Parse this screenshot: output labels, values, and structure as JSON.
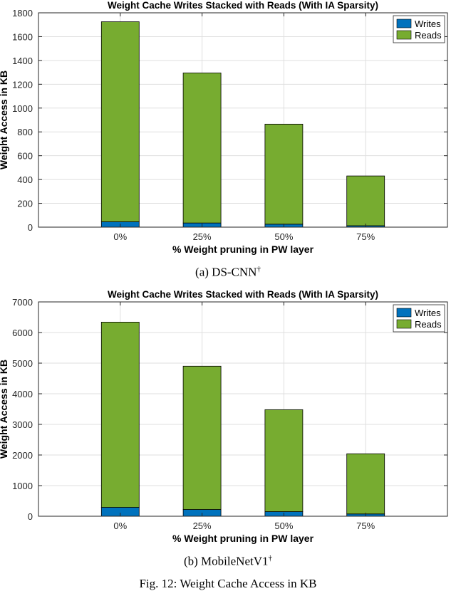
{
  "charts": [
    {
      "type": "bar",
      "stacked": true,
      "title": "Weight Cache Writes Stacked with Reads (With IA Sparsity)",
      "xlabel": "% Weight pruning in PW layer",
      "ylabel": "Weight Access in KB",
      "categories": [
        "0%",
        "25%",
        "50%",
        "75%"
      ],
      "ylim": [
        0,
        1800
      ],
      "yticks": [
        0,
        200,
        400,
        600,
        800,
        1000,
        1200,
        1400,
        1600,
        1800
      ],
      "legend_position": "top-right",
      "series": [
        {
          "name": "Writes",
          "color": "#0072BD",
          "values": [
            45,
            35,
            25,
            12
          ]
        },
        {
          "name": "Reads",
          "color": "#77AC30",
          "values": [
            1680,
            1260,
            840,
            418
          ]
        }
      ]
    },
    {
      "type": "bar",
      "stacked": true,
      "title": "Weight Cache Writes Stacked with Reads (With IA Sparsity)",
      "xlabel": "% Weight pruning in PW layer",
      "ylabel": "Weight Access in KB",
      "categories": [
        "0%",
        "25%",
        "50%",
        "75%"
      ],
      "ylim": [
        0,
        7000
      ],
      "yticks": [
        0,
        1000,
        2000,
        3000,
        4000,
        5000,
        6000,
        7000
      ],
      "legend_position": "top-right",
      "series": [
        {
          "name": "Writes",
          "color": "#0072BD",
          "values": [
            290,
            220,
            150,
            75
          ]
        },
        {
          "name": "Reads",
          "color": "#77AC30",
          "values": [
            6050,
            4680,
            3330,
            1965
          ]
        }
      ]
    }
  ],
  "captions": {
    "a_prefix": "(a) DS-CNN",
    "a_mark": "†",
    "b_prefix": "(b) MobileNetV1",
    "b_mark": "†",
    "figure": "Fig. 12: Weight Cache Access in KB"
  }
}
